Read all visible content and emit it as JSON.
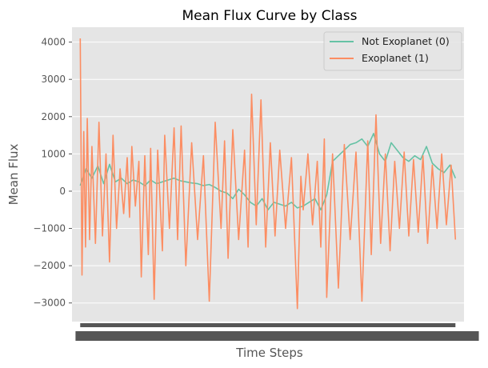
{
  "chart_data": {
    "type": "line",
    "title": "Mean Flux Curve by Class",
    "xlabel": "Time Steps",
    "ylabel": "Mean Flux",
    "ylim": [
      -3500,
      4400
    ],
    "xlim": [
      -70,
      3270
    ],
    "yticks": [
      4000,
      3000,
      2000,
      1000,
      0,
      -1000,
      -2000,
      -3000
    ],
    "ytick_labels": [
      "4000",
      "3000",
      "2000",
      "1000",
      "0",
      "−1000",
      "−2000",
      "−3000"
    ],
    "x_ticks_overlapping_unreadable": true,
    "grid": true,
    "legend_position": "top-right",
    "colors": {
      "background": "#e5e5e5",
      "grid": "#ffffff",
      "series0": "#66c2a5",
      "series1": "#fc8d62"
    },
    "series": [
      {
        "name": "Not Exoplanet (0)",
        "x": [
          0,
          50,
          100,
          150,
          200,
          250,
          300,
          350,
          400,
          450,
          500,
          550,
          600,
          650,
          700,
          750,
          800,
          850,
          900,
          950,
          1000,
          1050,
          1100,
          1150,
          1200,
          1250,
          1300,
          1350,
          1400,
          1450,
          1500,
          1550,
          1600,
          1650,
          1700,
          1750,
          1800,
          1850,
          1900,
          1950,
          2000,
          2050,
          2100,
          2150,
          2200,
          2250,
          2300,
          2350,
          2400,
          2450,
          2500,
          2550,
          2600,
          2650,
          2700,
          2750,
          2800,
          2850,
          2900,
          2950,
          3000,
          3050,
          3100,
          3150,
          3197
        ],
        "y": [
          150,
          600,
          350,
          680,
          200,
          720,
          250,
          350,
          200,
          300,
          250,
          150,
          300,
          200,
          250,
          300,
          350,
          280,
          250,
          220,
          200,
          150,
          180,
          100,
          0,
          -50,
          -200,
          50,
          -100,
          -300,
          -400,
          -200,
          -500,
          -300,
          -350,
          -400,
          -300,
          -450,
          -400,
          -300,
          -200,
          -500,
          -100,
          800,
          950,
          1100,
          1250,
          1300,
          1400,
          1200,
          1550,
          1000,
          800,
          1300,
          1100,
          900,
          800,
          950,
          850,
          1200,
          750,
          600,
          500,
          700,
          350
        ]
      },
      {
        "name": "Exoplanet (1)",
        "x": [
          0,
          15,
          30,
          45,
          60,
          80,
          100,
          130,
          160,
          190,
          220,
          250,
          280,
          310,
          340,
          370,
          400,
          420,
          440,
          470,
          500,
          520,
          550,
          580,
          600,
          630,
          660,
          700,
          720,
          760,
          800,
          830,
          860,
          900,
          950,
          1000,
          1050,
          1100,
          1150,
          1200,
          1230,
          1260,
          1300,
          1350,
          1400,
          1430,
          1460,
          1500,
          1540,
          1580,
          1620,
          1660,
          1700,
          1750,
          1800,
          1850,
          1880,
          1900,
          1940,
          1980,
          2020,
          2050,
          2080,
          2100,
          2150,
          2200,
          2250,
          2300,
          2350,
          2400,
          2450,
          2480,
          2520,
          2560,
          2600,
          2640,
          2680,
          2720,
          2760,
          2800,
          2840,
          2880,
          2920,
          2960,
          3000,
          3040,
          3080,
          3120,
          3160,
          3197
        ],
        "y": [
          4100,
          -2250,
          1600,
          -1500,
          1950,
          -1300,
          1200,
          -1400,
          1850,
          -1200,
          1000,
          -1900,
          1500,
          -1000,
          600,
          -600,
          900,
          -700,
          1200,
          -400,
          800,
          -2300,
          950,
          -1700,
          1150,
          -2900,
          1100,
          -1600,
          1500,
          -1000,
          1700,
          -1300,
          1750,
          -2000,
          1300,
          -1300,
          950,
          -2950,
          1850,
          -1000,
          1350,
          -1800,
          1650,
          -1300,
          1100,
          -1500,
          2600,
          -900,
          2450,
          -1500,
          1300,
          -1200,
          1100,
          -1000,
          900,
          -3150,
          400,
          -500,
          1000,
          -900,
          800,
          -1500,
          1400,
          -2850,
          1000,
          -2600,
          1250,
          -1300,
          1050,
          -2950,
          1350,
          -1700,
          2050,
          -1400,
          1000,
          -1600,
          800,
          -1000,
          1050,
          -1200,
          850,
          -1100,
          950,
          -1400,
          700,
          -1000,
          1000,
          -900,
          700,
          -1300
        ]
      }
    ]
  }
}
